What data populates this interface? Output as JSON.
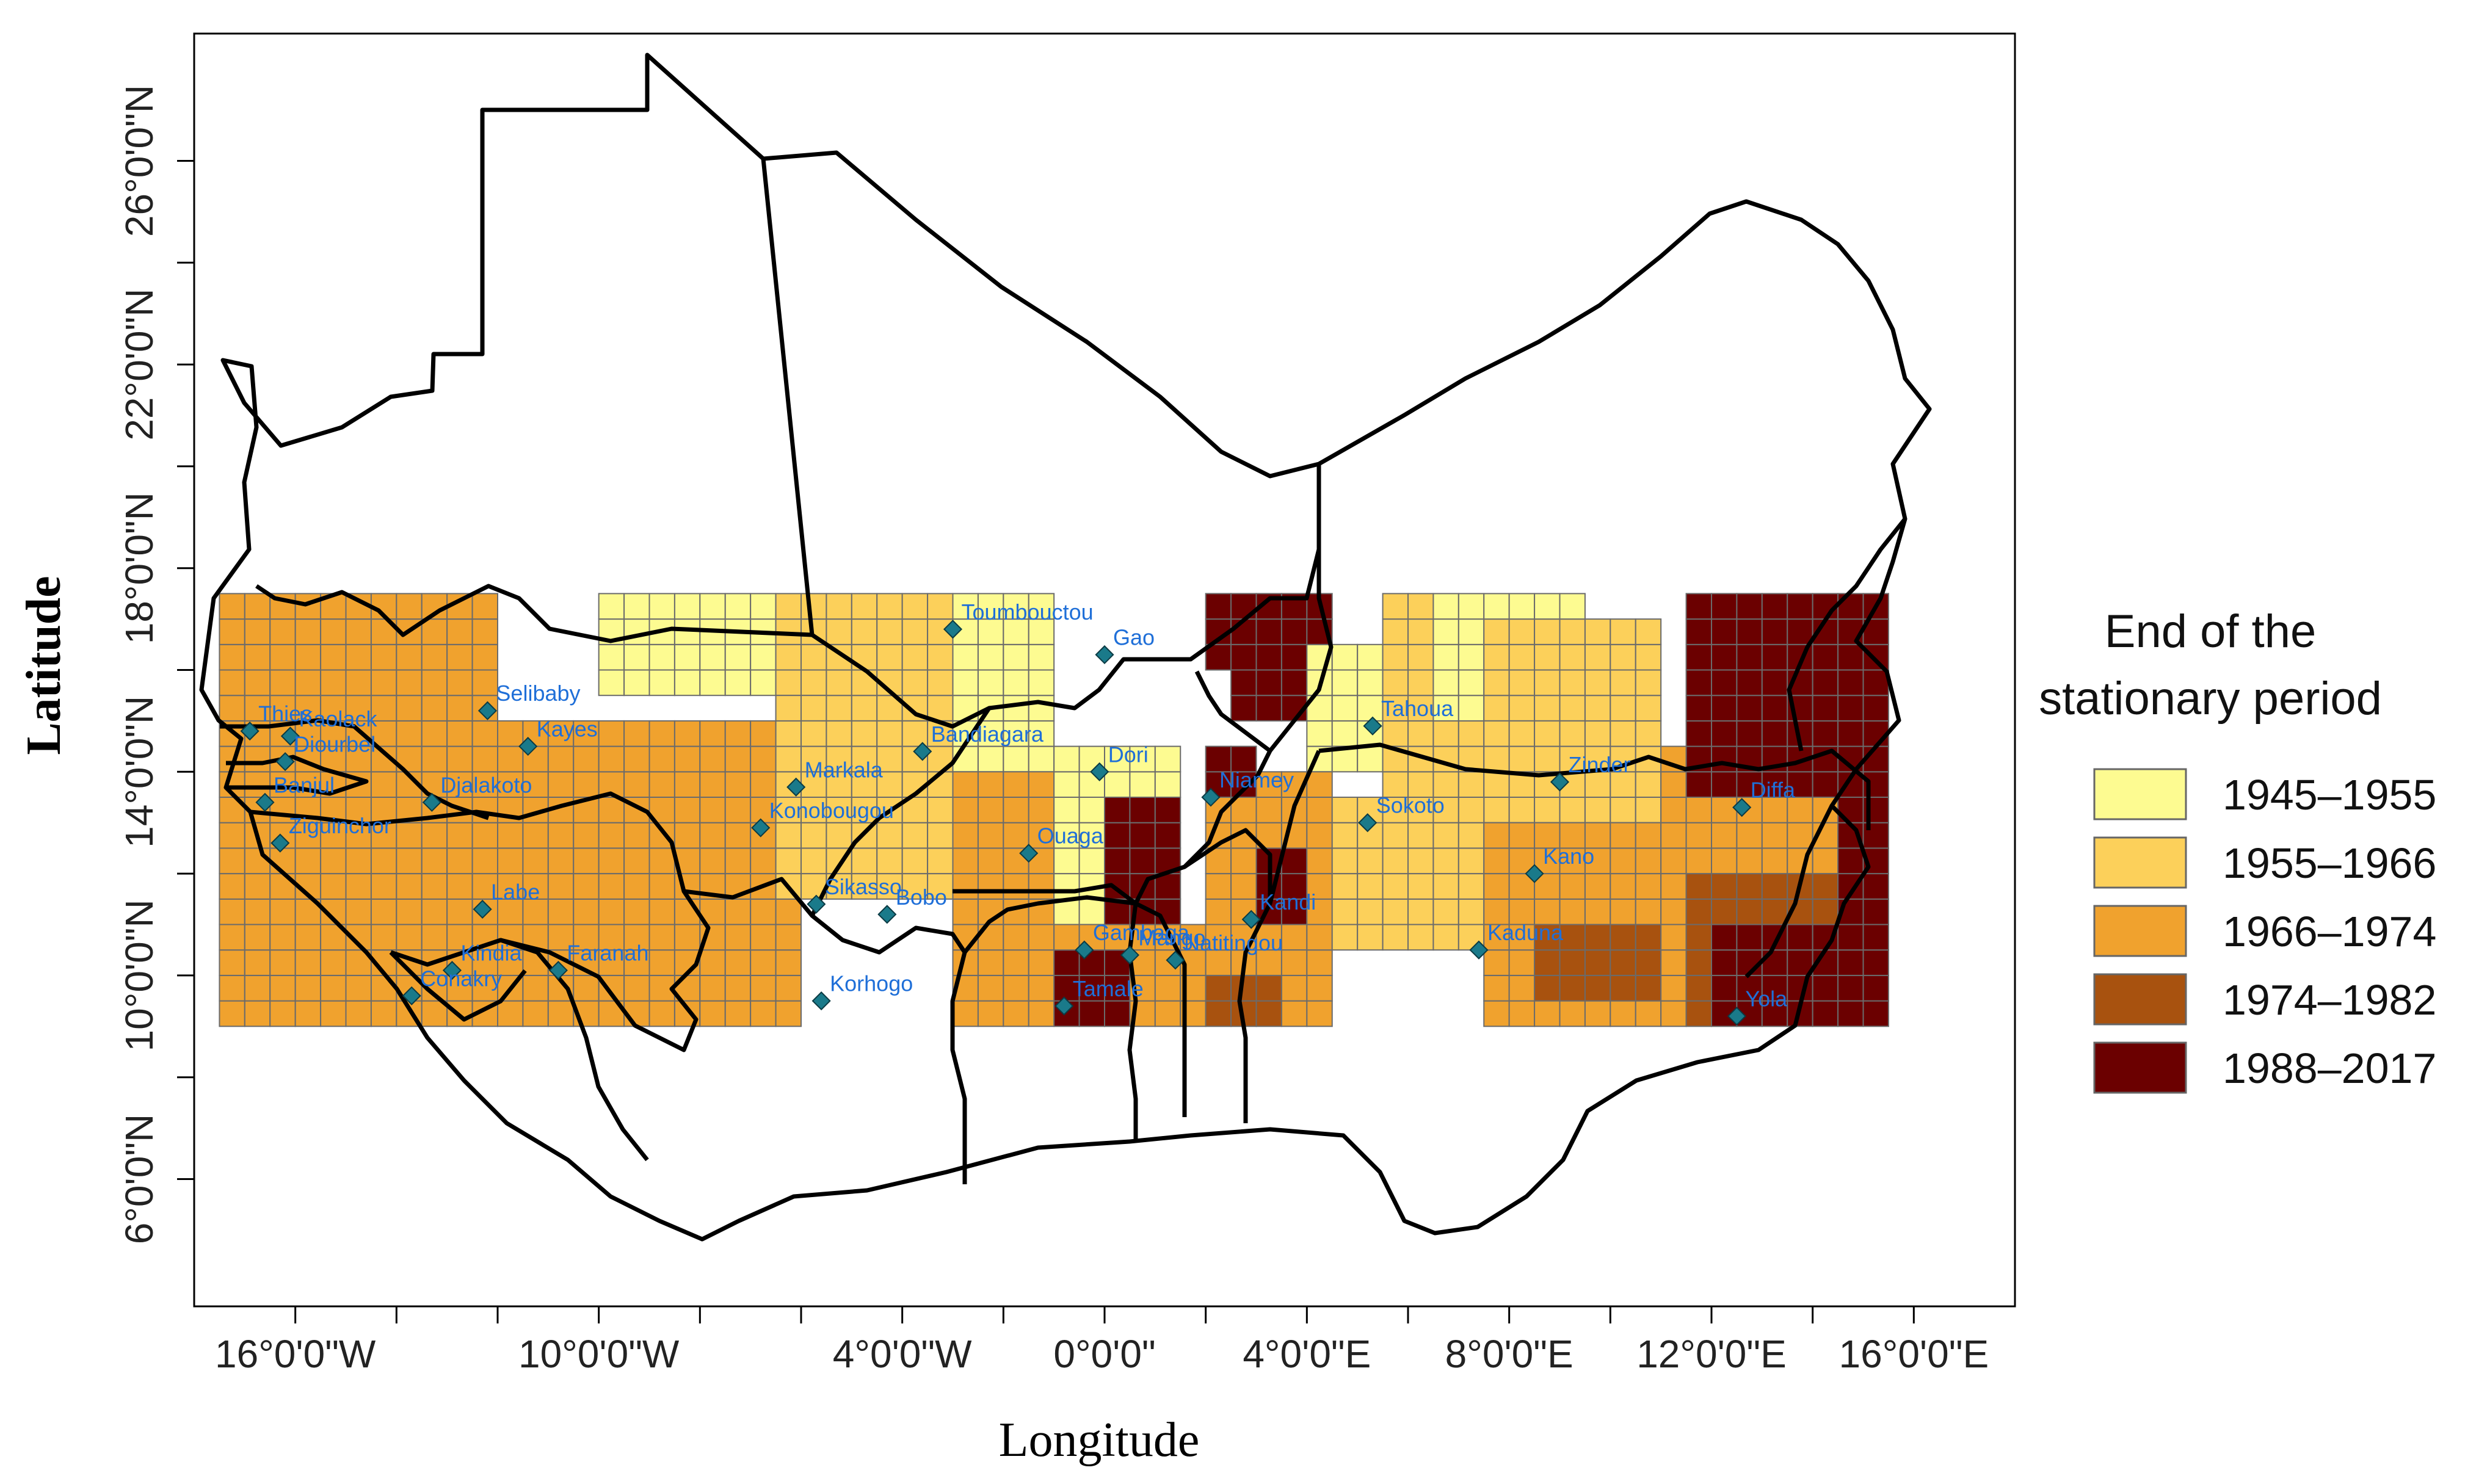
{
  "map": {
    "xlabel": "Longitude",
    "ylabel": "Latitude",
    "lon_range": [
      -18.0,
      18.0
    ],
    "lat_range": [
      3.5,
      28.5
    ],
    "x_ticks": [
      {
        "value": -16,
        "label": "16°0'0\"W"
      },
      {
        "value": -10,
        "label": "10°0'0\"W"
      },
      {
        "value": -4,
        "label": "4°0'0\"W"
      },
      {
        "value": 0,
        "label": "0°0'0\""
      },
      {
        "value": 4,
        "label": "4°0'0\"E"
      },
      {
        "value": 8,
        "label": "8°0'0\"E"
      },
      {
        "value": 12,
        "label": "12°0'0\"E"
      },
      {
        "value": 16,
        "label": "16°0'0\"E"
      }
    ],
    "x_minor_ticks": [
      -14,
      -12,
      -8,
      -6,
      -2,
      2,
      6,
      10,
      14
    ],
    "y_ticks": [
      {
        "value": 6,
        "label": "6°0'0\"N"
      },
      {
        "value": 10,
        "label": "10°0'0\"N"
      },
      {
        "value": 14,
        "label": "14°0'0\"N"
      },
      {
        "value": 18,
        "label": "18°0'0\"N"
      },
      {
        "value": 22,
        "label": "22°0'0\"N"
      },
      {
        "value": 26,
        "label": "26°0'0\"N"
      }
    ],
    "y_minor_ticks": [
      8,
      12,
      16,
      20,
      24
    ],
    "grid": false,
    "colors": {
      "border": "#000000",
      "cell_outline": "#6b6b6b",
      "station_marker": "#1a7a8a",
      "station_label": "#1f6fd8"
    }
  },
  "legend": {
    "title_line1": "End of the",
    "title_line2": "stationary period",
    "placement": "right",
    "classes": [
      {
        "label": "1945–1955",
        "color": "#fdfb91"
      },
      {
        "label": "1955–1966",
        "color": "#fcd05a"
      },
      {
        "label": "1966–1974",
        "color": "#f0a22e"
      },
      {
        "label": "1974–1982",
        "color": "#a8520f"
      },
      {
        "label": "1988–2017",
        "color": "#6b0000"
      }
    ]
  },
  "chart_data": {
    "type": "choropleth-grid",
    "cell_size_deg": 0.5,
    "lon_extent": [
      -17.5,
      15.5
    ],
    "lat_extent": [
      9.0,
      17.5
    ],
    "regions": [
      {
        "class": 2,
        "lon": [
          -17.5,
          -12.0
        ],
        "lat": [
          9.0,
          17.5
        ]
      },
      {
        "class": 2,
        "lon": [
          -12.0,
          -6.0
        ],
        "lat": [
          9.0,
          15.0
        ]
      },
      {
        "class": 0,
        "lon": [
          -10.0,
          -5.5
        ],
        "lat": [
          15.5,
          17.5
        ]
      },
      {
        "class": 1,
        "lon": [
          -6.5,
          -3.0
        ],
        "lat": [
          15.0,
          17.5
        ]
      },
      {
        "class": 0,
        "lon": [
          -3.0,
          -1.0
        ],
        "lat": [
          14.0,
          17.5
        ]
      },
      {
        "class": 1,
        "lon": [
          -6.5,
          -3.0
        ],
        "lat": [
          11.5,
          15.0
        ]
      },
      {
        "class": 2,
        "lon": [
          -3.0,
          -1.0
        ],
        "lat": [
          9.0,
          14.0
        ]
      },
      {
        "class": 0,
        "lon": [
          -1.0,
          1.5
        ],
        "lat": [
          11.0,
          14.5
        ]
      },
      {
        "class": 4,
        "lon": [
          0.0,
          1.5
        ],
        "lat": [
          11.0,
          13.5
        ]
      },
      {
        "class": 2,
        "lon": [
          -1.0,
          1.5
        ],
        "lat": [
          9.0,
          11.0
        ]
      },
      {
        "class": 4,
        "lon": [
          -1.0,
          0.5
        ],
        "lat": [
          9.0,
          10.5
        ]
      },
      {
        "class": 4,
        "lon": [
          2.0,
          4.5
        ],
        "lat": [
          16.0,
          17.5
        ]
      },
      {
        "class": 4,
        "lon": [
          2.5,
          4.0
        ],
        "lat": [
          15.0,
          16.0
        ]
      },
      {
        "class": 0,
        "lon": [
          4.0,
          5.5
        ],
        "lat": [
          14.0,
          16.5
        ]
      },
      {
        "class": 1,
        "lon": [
          5.5,
          7.5
        ],
        "lat": [
          13.5,
          17.5
        ]
      },
      {
        "class": 0,
        "lon": [
          6.5,
          9.5
        ],
        "lat": [
          15.0,
          17.5
        ]
      },
      {
        "class": 1,
        "lon": [
          7.5,
          11.0
        ],
        "lat": [
          13.0,
          17.0
        ]
      },
      {
        "class": 2,
        "lon": [
          2.0,
          4.5
        ],
        "lat": [
          11.0,
          14.0
        ]
      },
      {
        "class": 4,
        "lon": [
          2.0,
          3.0
        ],
        "lat": [
          13.5,
          14.5
        ]
      },
      {
        "class": 4,
        "lon": [
          3.0,
          4.0
        ],
        "lat": [
          10.5,
          12.5
        ]
      },
      {
        "class": 2,
        "lon": [
          1.5,
          4.5
        ],
        "lat": [
          9.0,
          11.0
        ]
      },
      {
        "class": 3,
        "lon": [
          2.0,
          3.5
        ],
        "lat": [
          9.0,
          10.0
        ]
      },
      {
        "class": 1,
        "lon": [
          4.5,
          7.5
        ],
        "lat": [
          10.5,
          13.5
        ]
      },
      {
        "class": 2,
        "lon": [
          7.5,
          11.0
        ],
        "lat": [
          9.0,
          13.0
        ]
      },
      {
        "class": 3,
        "lon": [
          8.5,
          11.0
        ],
        "lat": [
          9.5,
          11.0
        ]
      },
      {
        "class": 2,
        "lon": [
          11.0,
          15.5
        ],
        "lat": [
          9.0,
          14.5
        ]
      },
      {
        "class": 3,
        "lon": [
          11.5,
          15.0
        ],
        "lat": [
          9.0,
          12.0
        ]
      },
      {
        "class": 4,
        "lon": [
          11.5,
          15.5
        ],
        "lat": [
          13.5,
          17.5
        ]
      },
      {
        "class": 4,
        "lon": [
          12.0,
          15.5
        ],
        "lat": [
          9.0,
          11.0
        ]
      },
      {
        "class": 4,
        "lon": [
          14.5,
          15.5
        ],
        "lat": [
          9.0,
          13.5
        ]
      }
    ],
    "stations": [
      {
        "name": "Thies",
        "lon": -16.9,
        "lat": 14.8
      },
      {
        "name": "Kaolack",
        "lon": -16.1,
        "lat": 14.7
      },
      {
        "name": "Diourbel",
        "lon": -16.2,
        "lat": 14.2
      },
      {
        "name": "Banjul",
        "lon": -16.6,
        "lat": 13.4
      },
      {
        "name": "Ziguinchor",
        "lon": -16.3,
        "lat": 12.6
      },
      {
        "name": "Selibaby",
        "lon": -12.2,
        "lat": 15.2
      },
      {
        "name": "Kayes",
        "lon": -11.4,
        "lat": 14.5
      },
      {
        "name": "Djalakoto",
        "lon": -13.3,
        "lat": 13.4
      },
      {
        "name": "Labe",
        "lon": -12.3,
        "lat": 11.3
      },
      {
        "name": "Kindia",
        "lon": -12.9,
        "lat": 10.1
      },
      {
        "name": "Conakry",
        "lon": -13.7,
        "lat": 9.6
      },
      {
        "name": "Faranah",
        "lon": -10.8,
        "lat": 10.1
      },
      {
        "name": "Markala",
        "lon": -6.1,
        "lat": 13.7
      },
      {
        "name": "Konobougou",
        "lon": -6.8,
        "lat": 12.9
      },
      {
        "name": "Bandiagara",
        "lon": -3.6,
        "lat": 14.4
      },
      {
        "name": "Toumbouctou",
        "lon": -3.0,
        "lat": 16.8
      },
      {
        "name": "Gao",
        "lon": 0.0,
        "lat": 16.3
      },
      {
        "name": "Sikasso",
        "lon": -5.7,
        "lat": 11.4
      },
      {
        "name": "Bobo",
        "lon": -4.3,
        "lat": 11.2
      },
      {
        "name": "Korhogo",
        "lon": -5.6,
        "lat": 9.5
      },
      {
        "name": "Ouaga",
        "lon": -1.5,
        "lat": 12.4
      },
      {
        "name": "Dori",
        "lon": -0.1,
        "lat": 14.0
      },
      {
        "name": "Gambaga",
        "lon": -0.4,
        "lat": 10.5
      },
      {
        "name": "Tamale",
        "lon": -0.8,
        "lat": 9.4
      },
      {
        "name": "Mango",
        "lon": 0.5,
        "lat": 10.4
      },
      {
        "name": "Natitingou",
        "lon": 1.4,
        "lat": 10.3
      },
      {
        "name": "Niamey",
        "lon": 2.1,
        "lat": 13.5
      },
      {
        "name": "Kandi",
        "lon": 2.9,
        "lat": 11.1
      },
      {
        "name": "Tahoua",
        "lon": 5.3,
        "lat": 14.9
      },
      {
        "name": "Sokoto",
        "lon": 5.2,
        "lat": 13.0
      },
      {
        "name": "Zinder",
        "lon": 9.0,
        "lat": 13.8
      },
      {
        "name": "Kano",
        "lon": 8.5,
        "lat": 12.0
      },
      {
        "name": "Kaduna",
        "lon": 7.4,
        "lat": 10.5
      },
      {
        "name": "Diffa",
        "lon": 12.6,
        "lat": 13.3
      },
      {
        "name": "Yola",
        "lon": 12.5,
        "lat": 9.2
      }
    ]
  }
}
